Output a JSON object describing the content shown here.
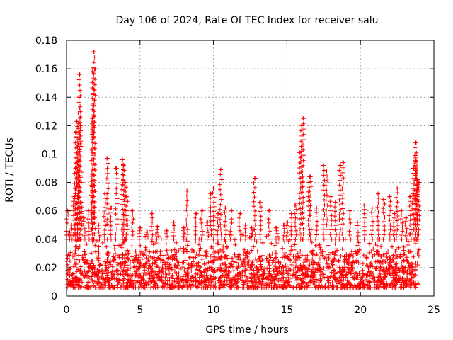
{
  "chart_data": {
    "type": "scatter",
    "title": "Day 106 of 2024, Rate Of TEC Index for receiver salu",
    "xlabel": "GPS time / hours",
    "ylabel": "ROTI / TECUs",
    "xlim": [
      0,
      25
    ],
    "ylim": [
      0,
      0.18
    ],
    "x_ticks": [
      0,
      5,
      10,
      15,
      20,
      25
    ],
    "x_tick_labels": [
      "0",
      "5",
      "10",
      "15",
      "20",
      "25"
    ],
    "y_ticks": [
      0,
      0.02,
      0.04,
      0.06,
      0.08,
      0.1,
      0.12,
      0.14,
      0.16,
      0.18
    ],
    "y_tick_labels": [
      "0",
      "0.02",
      "0.04",
      "0.06",
      "0.08",
      "0.1",
      "0.12",
      "0.14",
      "0.16",
      "0.18"
    ],
    "grid": true,
    "marker": "+",
    "color": "#ff0000",
    "series": [
      {
        "name": "ROTI",
        "x": [
          0.05,
          0.2,
          0.35,
          0.5,
          0.6,
          0.65,
          0.7,
          0.75,
          0.8,
          0.85,
          0.9,
          0.95,
          1.0,
          1.2,
          1.5,
          1.7,
          1.75,
          1.8,
          1.85,
          1.9,
          2.2,
          2.6,
          2.8,
          3.0,
          3.4,
          3.8,
          3.9,
          4.0,
          4.1,
          4.5,
          5.0,
          5.5,
          5.8,
          6.2,
          6.8,
          7.3,
          8.0,
          8.2,
          8.8,
          9.2,
          9.6,
          9.8,
          10.0,
          10.3,
          10.5,
          10.8,
          11.2,
          11.8,
          12.2,
          12.6,
          12.8,
          13.2,
          13.8,
          14.3,
          14.8,
          15.0,
          15.3,
          15.6,
          15.9,
          16.0,
          16.1,
          16.5,
          16.6,
          17.0,
          17.5,
          17.7,
          18.0,
          18.3,
          18.6,
          18.8,
          19.3,
          19.8,
          20.3,
          20.8,
          21.2,
          21.6,
          22.0,
          22.3,
          22.5,
          22.8,
          23.1,
          23.4,
          23.6,
          23.7,
          23.75,
          23.8,
          23.85,
          23.9,
          23.95
        ],
        "y": [
          0.06,
          0.045,
          0.05,
          0.07,
          0.09,
          0.115,
          0.123,
          0.105,
          0.095,
          0.14,
          0.156,
          0.12,
          0.066,
          0.055,
          0.06,
          0.078,
          0.125,
          0.158,
          0.172,
          0.16,
          0.05,
          0.072,
          0.097,
          0.062,
          0.09,
          0.096,
          0.092,
          0.08,
          0.07,
          0.06,
          0.048,
          0.045,
          0.058,
          0.049,
          0.046,
          0.052,
          0.048,
          0.074,
          0.058,
          0.06,
          0.052,
          0.072,
          0.076,
          0.058,
          0.089,
          0.062,
          0.06,
          0.058,
          0.05,
          0.048,
          0.083,
          0.066,
          0.06,
          0.048,
          0.05,
          0.052,
          0.058,
          0.064,
          0.101,
          0.12,
          0.125,
          0.08,
          0.084,
          0.062,
          0.092,
          0.088,
          0.07,
          0.066,
          0.092,
          0.094,
          0.06,
          0.052,
          0.064,
          0.062,
          0.072,
          0.068,
          0.07,
          0.058,
          0.076,
          0.06,
          0.055,
          0.07,
          0.09,
          0.099,
          0.108,
          0.095,
          0.088,
          0.082,
          0.08
        ],
        "baseline_min": 0.006,
        "baseline_max": 0.045,
        "baseline_typical": 0.022
      }
    ]
  }
}
